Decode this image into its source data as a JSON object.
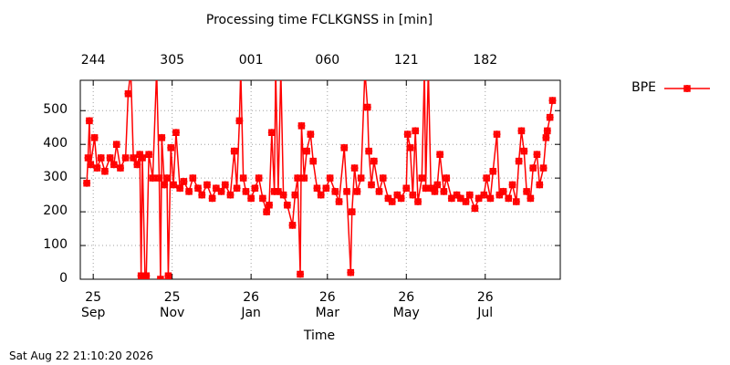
{
  "chart_data": {
    "type": "line",
    "title": "Processing time FCLKGNSS in [min]",
    "x_label": "Time",
    "footer": "Sat Aug 22 21:10:20 2026",
    "xlim": [
      "2025-08-22",
      "2026-08-28"
    ],
    "ylim": [
      0,
      590
    ],
    "yticks": [
      0,
      100,
      200,
      300,
      400,
      500
    ],
    "xticks": [
      {
        "value": "2025-09-01",
        "label": "25\nSep"
      },
      {
        "value": "2025-11-01",
        "label": "25\nNov"
      },
      {
        "value": "2026-01-01",
        "label": "26\nJan"
      },
      {
        "value": "2026-03-01",
        "label": "26\nMar"
      },
      {
        "value": "2026-05-01",
        "label": "26\nMay"
      },
      {
        "value": "2026-07-01",
        "label": "26\nJul"
      }
    ],
    "x2ticks": [
      {
        "value": "2025-09-01",
        "label": "244"
      },
      {
        "value": "2025-11-01",
        "label": "305"
      },
      {
        "value": "2026-01-01",
        "label": "001"
      },
      {
        "value": "2026-03-01",
        "label": "060"
      },
      {
        "value": "2026-05-01",
        "label": "121"
      },
      {
        "value": "2026-07-01",
        "label": "182"
      }
    ],
    "grid": true,
    "legend": "outside-top-right",
    "x": [
      "2025-08-27",
      "2025-08-28",
      "2025-08-29",
      "2025-08-30",
      "2025-09-02",
      "2025-09-04",
      "2025-09-07",
      "2025-09-10",
      "2025-09-14",
      "2025-09-17",
      "2025-09-19",
      "2025-09-22",
      "2025-09-26",
      "2025-09-28",
      "2025-09-30",
      "2025-10-02",
      "2025-10-05",
      "2025-10-07",
      "2025-10-08",
      "2025-10-09",
      "2025-10-11",
      "2025-10-12",
      "2025-10-14",
      "2025-10-17",
      "2025-10-20",
      "2025-10-22",
      "2025-10-23",
      "2025-10-24",
      "2025-10-26",
      "2025-10-28",
      "2025-10-29",
      "2025-10-31",
      "2025-11-02",
      "2025-11-04",
      "2025-11-07",
      "2025-11-10",
      "2025-11-14",
      "2025-11-17",
      "2025-11-21",
      "2025-11-24",
      "2025-11-28",
      "2025-12-02",
      "2025-12-05",
      "2025-12-09",
      "2025-12-12",
      "2025-12-16",
      "2025-12-19",
      "2025-12-21",
      "2025-12-23",
      "2025-12-24",
      "2025-12-26",
      "2025-12-28",
      "2026-01-01",
      "2026-01-04",
      "2026-01-07",
      "2026-01-10",
      "2026-01-13",
      "2026-01-15",
      "2026-01-17",
      "2026-01-19",
      "2026-01-20",
      "2026-01-22",
      "2026-01-24",
      "2026-01-26",
      "2026-01-29",
      "2026-02-02",
      "2026-02-04",
      "2026-02-06",
      "2026-02-08",
      "2026-02-09",
      "2026-02-11",
      "2026-02-13",
      "2026-02-16",
      "2026-02-18",
      "2026-02-21",
      "2026-02-24",
      "2026-02-28",
      "2026-03-03",
      "2026-03-07",
      "2026-03-10",
      "2026-03-14",
      "2026-03-16",
      "2026-03-19",
      "2026-03-20",
      "2026-03-22",
      "2026-03-24",
      "2026-03-27",
      "2026-03-30",
      "2026-04-01",
      "2026-04-02",
      "2026-04-04",
      "2026-04-06",
      "2026-04-10",
      "2026-04-13",
      "2026-04-17",
      "2026-04-20",
      "2026-04-24",
      "2026-04-27",
      "2026-05-01",
      "2026-05-02",
      "2026-05-04",
      "2026-05-06",
      "2026-05-08",
      "2026-05-10",
      "2026-05-13",
      "2026-05-15",
      "2026-05-16",
      "2026-05-18",
      "2026-05-20",
      "2026-05-23",
      "2026-05-25",
      "2026-05-27",
      "2026-05-30",
      "2026-06-01",
      "2026-06-05",
      "2026-06-09",
      "2026-06-12",
      "2026-06-16",
      "2026-06-19",
      "2026-06-23",
      "2026-06-26",
      "2026-06-30",
      "2026-07-02",
      "2026-07-05",
      "2026-07-07",
      "2026-07-10",
      "2026-07-12",
      "2026-07-15",
      "2026-07-19",
      "2026-07-22",
      "2026-07-25",
      "2026-07-27",
      "2026-07-29",
      "2026-07-31",
      "2026-08-02",
      "2026-08-05",
      "2026-08-07",
      "2026-08-10",
      "2026-08-12",
      "2026-08-15",
      "2026-08-17",
      "2026-08-18",
      "2026-08-20",
      "2026-08-22"
    ],
    "series": [
      {
        "name": "BPE",
        "color": "#ff0000",
        "values": [
          285,
          360,
          470,
          340,
          420,
          330,
          360,
          320,
          360,
          340,
          400,
          330,
          360,
          550,
          620,
          360,
          340,
          370,
          10,
          360,
          10,
          10,
          370,
          300,
          620,
          300,
          0,
          420,
          280,
          300,
          10,
          390,
          280,
          435,
          270,
          290,
          260,
          300,
          270,
          250,
          280,
          240,
          270,
          260,
          280,
          250,
          380,
          270,
          470,
          620,
          300,
          260,
          240,
          270,
          300,
          240,
          200,
          220,
          435,
          260,
          620,
          260,
          620,
          250,
          220,
          160,
          250,
          300,
          15,
          455,
          300,
          380,
          430,
          350,
          270,
          250,
          270,
          300,
          260,
          230,
          390,
          260,
          20,
          200,
          330,
          260,
          300,
          620,
          510,
          380,
          280,
          350,
          260,
          300,
          240,
          230,
          250,
          240,
          270,
          430,
          390,
          250,
          440,
          230,
          300,
          620,
          270,
          620,
          270,
          260,
          280,
          370,
          260,
          300,
          240,
          250,
          240,
          230,
          250,
          210,
          240,
          250,
          300,
          240,
          320,
          430,
          250,
          260,
          240,
          280,
          230,
          350,
          440,
          380,
          260,
          240,
          330,
          370,
          280,
          330,
          420,
          440,
          480,
          530
        ]
      }
    ]
  }
}
